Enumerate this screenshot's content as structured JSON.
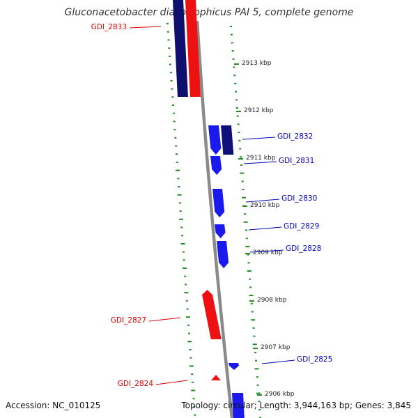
{
  "title": "Gluconacetobacter diazotrophicus PAI 5, complete genome",
  "footer": {
    "accession": "Accession: NC_010125",
    "summary": "Topology: circular; Length: 3,944,163 bp; Genes: 3,845"
  },
  "scale_ticks": [
    {
      "label": "2913 kbp"
    },
    {
      "label": "2912 kbp"
    },
    {
      "label": "2911 kbp"
    },
    {
      "label": "2910 kbp"
    },
    {
      "label": "2909 kbp"
    },
    {
      "label": "2908 kbp"
    },
    {
      "label": "2907 kbp"
    },
    {
      "label": "2906 kbp"
    }
  ],
  "genes": [
    {
      "name": "GDI_2833",
      "strand": "minus"
    },
    {
      "name": "GDI_2832",
      "strand": "plus"
    },
    {
      "name": "GDI_2831",
      "strand": "plus"
    },
    {
      "name": "GDI_2830",
      "strand": "plus"
    },
    {
      "name": "GDI_2829",
      "strand": "plus"
    },
    {
      "name": "GDI_2828",
      "strand": "plus"
    },
    {
      "name": "GDI_2827",
      "strand": "minus"
    },
    {
      "name": "GDI_2825",
      "strand": "plus"
    },
    {
      "name": "GDI_2824",
      "strand": "minus"
    }
  ],
  "colors": {
    "plus_strand": "#1a1aee",
    "plus_strand_dark": "#10107a",
    "minus_strand": "#ee1111",
    "minus_strand_dark": "#0f0f6e",
    "plus_label": "#0000bb",
    "minus_label": "#dd0000",
    "backbone": "#888888",
    "gc_ticks": "#228b22"
  }
}
